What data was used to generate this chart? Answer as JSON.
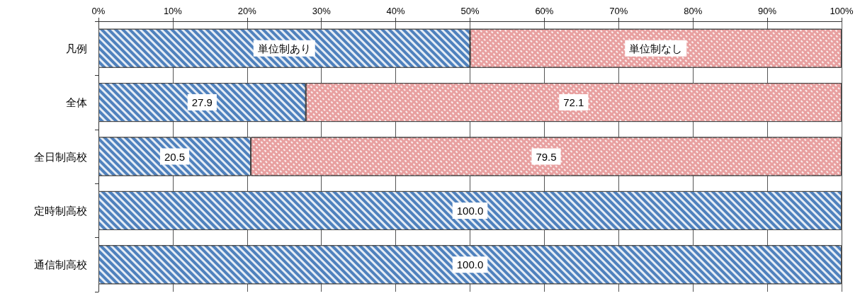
{
  "chart_data": {
    "type": "bar",
    "orientation": "horizontal",
    "stacked": true,
    "categories": [
      "凡例",
      "全体",
      "全日制高校",
      "定時制高校",
      "通信制高校"
    ],
    "series": [
      {
        "color": "#4f81bd",
        "values": [
          50,
          27.9,
          20.5,
          100.0,
          100.0
        ],
        "value_labels": [
          "単位制あり",
          "27.9",
          "20.5",
          "100.0",
          "100.0"
        ]
      },
      {
        "color": "#e8a0a0",
        "values": [
          50,
          72.1,
          79.5,
          null,
          null
        ],
        "value_labels": [
          "単位制なし",
          "72.1",
          "79.5",
          null,
          null
        ]
      }
    ],
    "xlim": [
      0,
      100
    ],
    "xticks": [
      {
        "value": 0,
        "label": "0%"
      },
      {
        "value": 10,
        "label": "10%"
      },
      {
        "value": 20,
        "label": "20%"
      },
      {
        "value": 30,
        "label": "30%"
      },
      {
        "value": 40,
        "label": "40%"
      },
      {
        "value": 50,
        "label": "50%"
      },
      {
        "value": 60,
        "label": "60%"
      },
      {
        "value": 70,
        "label": "70%"
      },
      {
        "value": 80,
        "label": "80%"
      },
      {
        "value": 90,
        "label": "90%"
      },
      {
        "value": 100,
        "label": "100%"
      }
    ],
    "grid": "x"
  }
}
